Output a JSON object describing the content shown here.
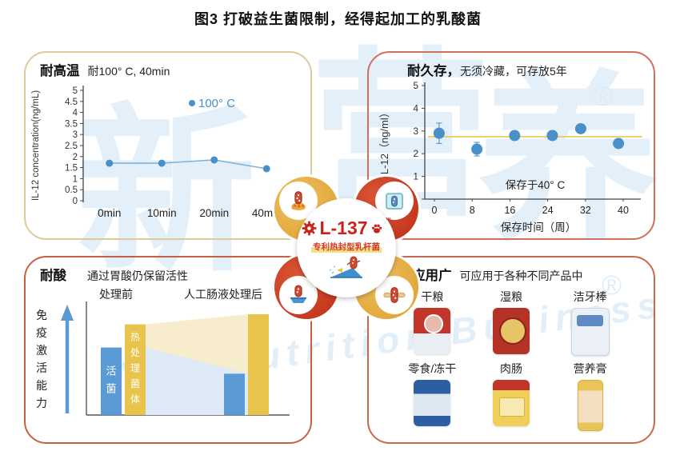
{
  "title": "图3 打破益生菌限制，经得起加工的乳酸菌",
  "watermark": {
    "char1": "新",
    "char2": "营",
    "char3": "养",
    "script": "New Nutrition Business",
    "registered": "®"
  },
  "emblem": {
    "logo": "L-137",
    "tm": "™",
    "subtitle": "专利热封型乳杆菌"
  },
  "heat_panel": {
    "title": "耐高温",
    "subtitle": "耐100° C, 40min"
  },
  "storage_panel": {
    "title": "耐久存，",
    "subtitle": "无须冷藏，可存放5年"
  },
  "acid_panel": {
    "title": "耐酸",
    "subtitle": "通过胃酸仍保留活性"
  },
  "apps_panel": {
    "title": "应用广",
    "subtitle": "可应用于各种不同产品中",
    "products": [
      {
        "label": "干粮"
      },
      {
        "label": "湿粮"
      },
      {
        "label": "洁牙棒"
      },
      {
        "label": "零食/冻干"
      },
      {
        "label": "肉肠"
      },
      {
        "label": "营养膏"
      }
    ]
  },
  "chart_data": [
    {
      "id": "heat",
      "type": "line",
      "title": "耐高温 耐100° C, 40min",
      "categories": [
        "0min",
        "10min",
        "20min",
        "40min"
      ],
      "series": [
        {
          "name": "100° C",
          "values": [
            1.7,
            1.7,
            1.85,
            1.45
          ]
        }
      ],
      "xlabel": "",
      "ylabel": "IL-12 concentration(ng/mL)",
      "ylim": [
        0,
        5
      ],
      "ytick_step": 0.5,
      "grid": false,
      "legend_position": "top-right",
      "point_color": "#4a90c8",
      "line_color": "#7fb2d9"
    },
    {
      "id": "storage",
      "type": "scatter",
      "title": "耐久存，无须冷藏，可存放5年",
      "x": [
        1,
        9,
        17,
        25,
        31,
        39
      ],
      "y": [
        2.9,
        2.2,
        2.8,
        2.8,
        3.1,
        2.45
      ],
      "yerr": [
        0.45,
        0.3,
        0.2,
        0.12,
        0,
        0
      ],
      "reference_line_y": 2.75,
      "reference_line_color": "#ecc84f",
      "xlabel": "保存时间（周）",
      "ylabel": "IL-12（ng/ml）",
      "xticks": [
        0,
        8,
        16,
        24,
        32,
        40
      ],
      "xlim": [
        -2,
        43
      ],
      "ylim": [
        0,
        5
      ],
      "grid": false,
      "annotation": "保存于40° C",
      "point_color": "#4a90c8"
    },
    {
      "id": "acid",
      "type": "bar",
      "title": "耐酸 通过胃酸仍保留活性",
      "ylabel": "免疫激活能力",
      "groups": [
        "处理前",
        "人工肠液处理后"
      ],
      "series": [
        {
          "name": "活菌",
          "values": [
            0.67,
            0.41
          ],
          "color": "#5b9bd5"
        },
        {
          "name": "热处理菌体",
          "values": [
            0.9,
            1.0
          ],
          "color": "#e9c44c"
        }
      ],
      "band_colors": {
        "upper": "#f7eccb",
        "lower": "#dde9f4"
      },
      "axis_note": "relative immune-activation ability, unlabeled axis"
    }
  ]
}
